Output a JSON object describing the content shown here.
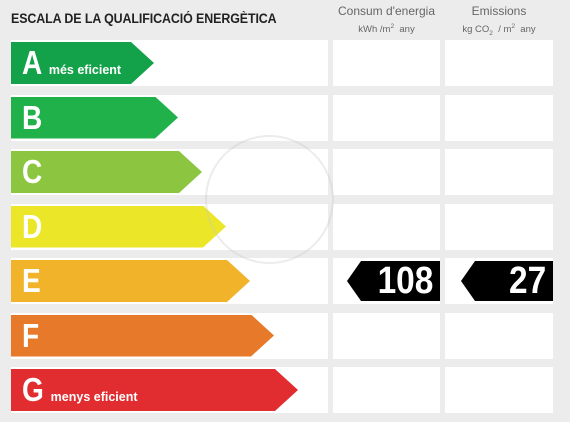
{
  "title": "ESCALA DE LA QUALIFICACIÓ ENERGÈTICA",
  "columns": {
    "consum": {
      "title": "Consum d'energia",
      "unit_pre": "kWh /m",
      "unit_sup": "2",
      "unit_post": "  any"
    },
    "emissions": {
      "title": "Emissions",
      "unit_pre": "kg CO",
      "unit_sub": "2",
      "unit_mid": "  / m",
      "unit_sup": "2",
      "unit_post": "  any"
    }
  },
  "ratings": [
    {
      "letter": "A",
      "label": "més eficient",
      "color": "#13a14a"
    },
    {
      "letter": "B",
      "label": "",
      "color": "#20b14b"
    },
    {
      "letter": "C",
      "label": "",
      "color": "#8cc641"
    },
    {
      "letter": "D",
      "label": "",
      "color": "#ece628"
    },
    {
      "letter": "E",
      "label": "",
      "color": "#f1b32a"
    },
    {
      "letter": "F",
      "label": "",
      "color": "#e77a2a"
    },
    {
      "letter": "G",
      "label": "menys eficient",
      "color": "#e12d2f"
    }
  ],
  "result": {
    "rating": "E",
    "consum_value": "108",
    "emissions_value": "27"
  }
}
